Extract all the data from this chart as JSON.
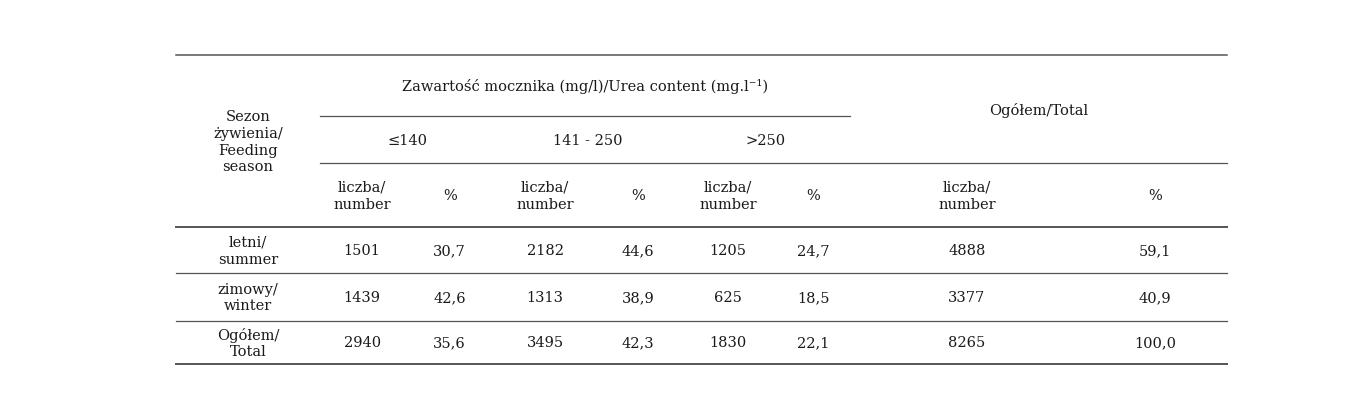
{
  "title_urea": "Zawartość mocznika (mg/l)/Urea content (mg.l⁻¹)",
  "title_total": "Ogółem/Total",
  "header_left": "Sezon\nżywienia/\nFeeding\nseason",
  "range_labels": [
    "≤140",
    "141 - 250",
    ">250"
  ],
  "col_labels": [
    "liczba/\nnumber",
    "%",
    "liczba/\nnumber",
    "%",
    "liczba/\nnumber",
    "%",
    "liczba/\nnumber",
    "%"
  ],
  "rows": [
    [
      "letni/\nsummer",
      "1501",
      "30,7",
      "2182",
      "44,6",
      "1205",
      "24,7",
      "4888",
      "59,1"
    ],
    [
      "zimowy/\nwinter",
      "1439",
      "42,6",
      "1313",
      "38,9",
      "625",
      "18,5",
      "3377",
      "40,9"
    ],
    [
      "Ogółem/\nTotal",
      "2940",
      "35,6",
      "3495",
      "42,3",
      "1830",
      "22,1",
      "8265",
      "100,0"
    ]
  ],
  "bg_color": "#ffffff",
  "text_color": "#1a1a1a",
  "line_color": "#555555",
  "font_size": 10.5,
  "figwidth": 13.69,
  "figheight": 4.14,
  "dpi": 100
}
